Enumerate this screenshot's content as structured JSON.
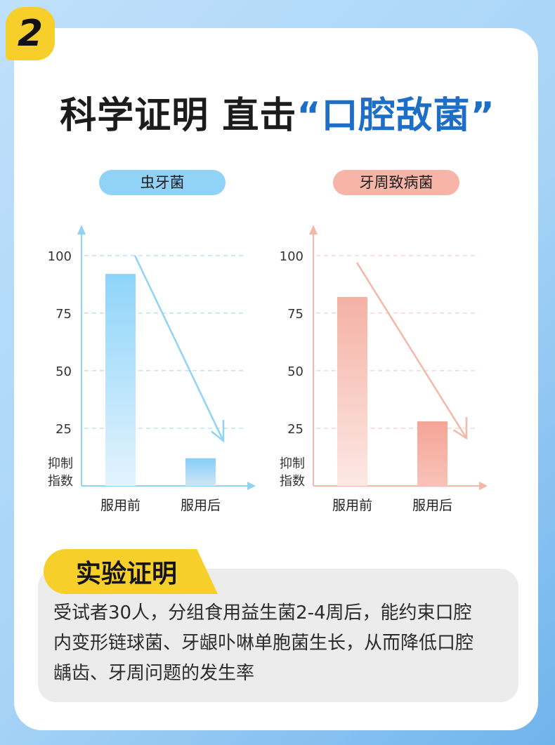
{
  "step_badge": {
    "number": "2"
  },
  "headline": {
    "prefix": "科学证明 直击",
    "open_quote": "“",
    "highlight": "口腔敌菌",
    "close_quote": "”"
  },
  "chart_data": [
    {
      "type": "bar",
      "title": "虫牙菌",
      "ylabel": "抑制指数",
      "ylabel_lines": [
        "抑制",
        "指数"
      ],
      "categories": [
        "服用前",
        "服用后"
      ],
      "values": [
        92,
        12
      ],
      "yticks": [
        25,
        50,
        75,
        100
      ],
      "ylim": [
        0,
        110
      ],
      "grid": true,
      "trend_arrow": "downward",
      "color": "#8ed0f7"
    },
    {
      "type": "bar",
      "title": "牙周致病菌",
      "ylabel": "抑制指数",
      "ylabel_lines": [
        "抑制",
        "指数"
      ],
      "categories": [
        "服用前",
        "服用后"
      ],
      "values": [
        82,
        28
      ],
      "yticks": [
        25,
        50,
        75,
        100
      ],
      "ylim": [
        0,
        110
      ],
      "grid": true,
      "trend_arrow": "downward",
      "color": "#f4aa9c"
    }
  ],
  "section": {
    "tag_label": "实验证明",
    "lines": [
      "受试者30人，分组食用益生菌2-4周后，能约束口腔",
      "内变形链球菌、牙龈卟啉单胞菌生长，从而降低口腔",
      "龋齿、牙周问题的发生率"
    ]
  }
}
